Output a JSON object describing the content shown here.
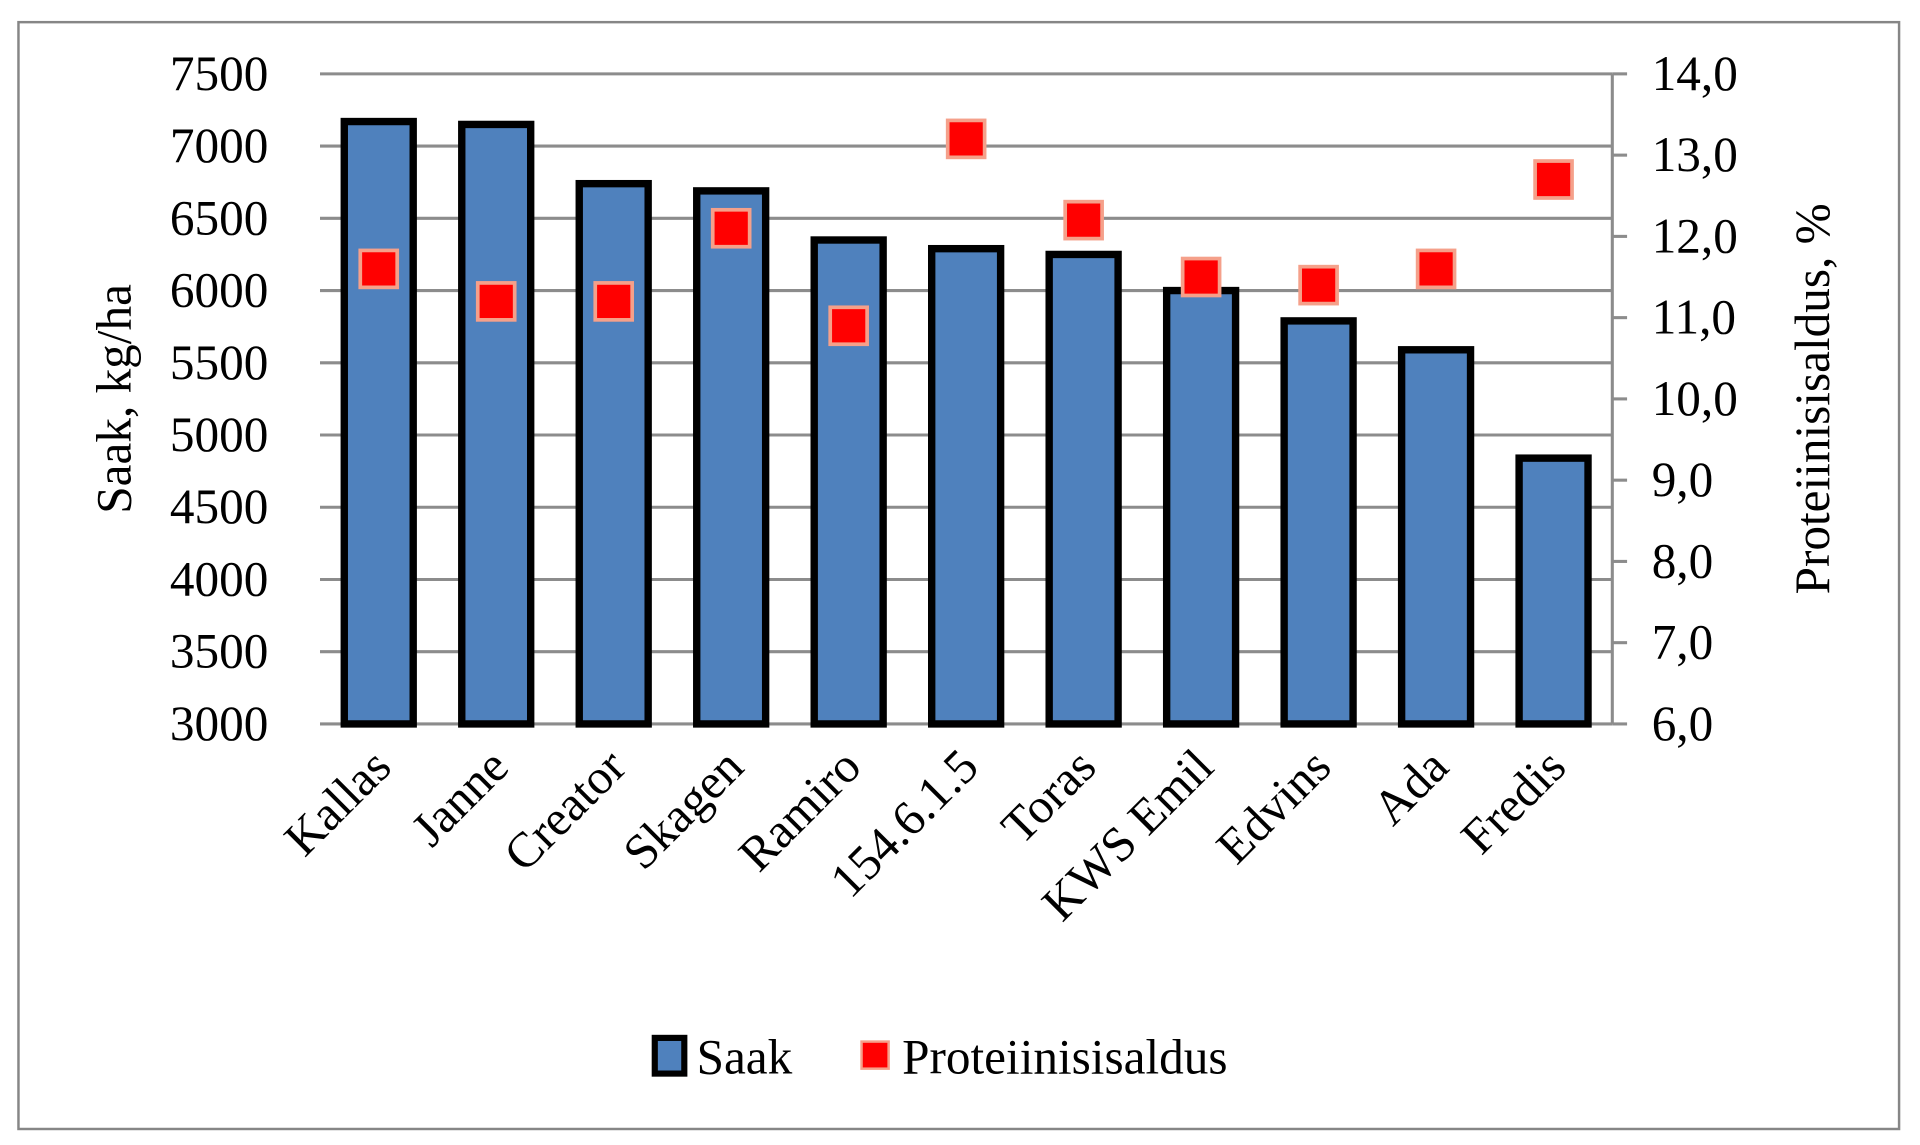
{
  "chart_data": {
    "type": "bar+scatter",
    "categories": [
      "Kallas",
      "Janne",
      "Creator",
      "Skagen",
      "Ramiro",
      "154.6.1.5",
      "Toras",
      "KWS Emil",
      "Edvins",
      "Ada",
      "Fredis"
    ],
    "series": [
      {
        "name": "Saak",
        "type": "bar",
        "axis": "left",
        "color": "#4F81BD",
        "values": [
          7170,
          7150,
          6740,
          6690,
          6350,
          6290,
          6250,
          6000,
          5790,
          5590,
          4840
        ]
      },
      {
        "name": "Proteiinisisaldus",
        "type": "scatter",
        "axis": "right",
        "color": "#FF0000",
        "values": [
          11.6,
          11.2,
          11.2,
          12.1,
          10.9,
          13.2,
          12.2,
          11.5,
          11.4,
          11.6,
          12.7
        ]
      }
    ],
    "ylabel": "Saak, kg/ha",
    "y2label": "Proteiinisisaldus, %",
    "ylim": [
      3000,
      7500
    ],
    "y2lim": [
      6.0,
      14.0
    ],
    "yticks": [
      "3000",
      "3500",
      "4000",
      "4500",
      "5000",
      "5500",
      "6000",
      "6500",
      "7000",
      "7500"
    ],
    "y2ticks": [
      "6,0",
      "7,0",
      "8,0",
      "9,0",
      "10,0",
      "11,0",
      "12,0",
      "13,0",
      "14,0"
    ],
    "grid": true,
    "legend": "bottom"
  }
}
